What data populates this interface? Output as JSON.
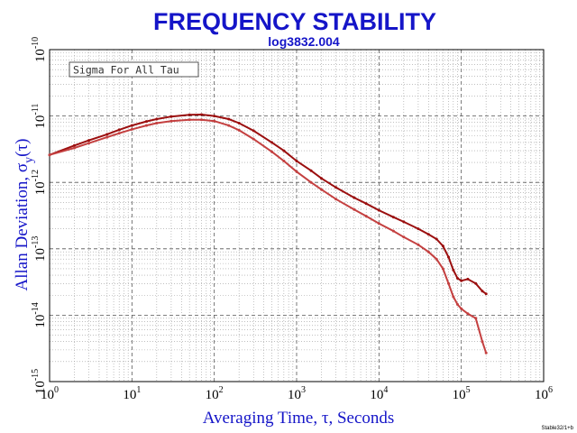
{
  "chart_data": {
    "type": "line",
    "title": "FREQUENCY STABILITY",
    "subtitle": "log3832.004",
    "xlabel": "Averaging Time, τ, Seconds",
    "ylabel": "Allan Deviation, σy(τ)",
    "x_scale": "log",
    "y_scale": "log",
    "xlim": [
      1,
      1000000
    ],
    "ylim": [
      1e-15,
      1e-10
    ],
    "grid": true,
    "legend": "top-left",
    "legend_text": "Sigma For All Tau",
    "x_ticks": [
      "10^0",
      "10^1",
      "10^2",
      "10^3",
      "10^4",
      "10^5",
      "10^6"
    ],
    "y_ticks": [
      "10^-15",
      "10^-14",
      "10^-13",
      "10^-12",
      "10^-11",
      "10^-10"
    ],
    "series": [
      {
        "color": "#9b0f0f",
        "x": [
          1,
          2,
          3,
          5,
          7,
          10,
          15,
          20,
          30,
          50,
          70,
          100,
          150,
          200,
          300,
          500,
          700,
          1000,
          1500,
          2000,
          3000,
          5000,
          7000,
          10000,
          15000,
          20000,
          30000,
          40000,
          50000,
          60000,
          70000,
          80000,
          90000,
          100000,
          120000,
          150000,
          180000,
          200000
        ],
        "y": [
          2.6e-12,
          3.6e-12,
          4.3e-12,
          5.3e-12,
          6.2e-12,
          7.2e-12,
          8.3e-12,
          9e-12,
          9.8e-12,
          1.04e-11,
          1.05e-11,
          1e-11,
          9e-12,
          7.8e-12,
          6e-12,
          4e-12,
          3e-12,
          2.1e-12,
          1.5e-12,
          1.15e-12,
          8.4e-13,
          5.9e-13,
          4.8e-13,
          3.8e-13,
          3e-13,
          2.55e-13,
          2e-13,
          1.65e-13,
          1.4e-13,
          1.1e-13,
          7.5e-14,
          4.8e-14,
          3.6e-14,
          3.3e-14,
          3.5e-14,
          3e-14,
          2.3e-14,
          2.1e-14
        ]
      },
      {
        "color": "#c44040",
        "x": [
          1,
          2,
          3,
          5,
          7,
          10,
          15,
          20,
          30,
          50,
          70,
          100,
          150,
          200,
          300,
          500,
          700,
          1000,
          1500,
          2000,
          3000,
          5000,
          7000,
          10000,
          15000,
          20000,
          30000,
          40000,
          50000,
          60000,
          70000,
          80000,
          90000,
          100000,
          120000,
          150000,
          180000,
          200000
        ],
        "y": [
          2.6e-12,
          3.3e-12,
          3.9e-12,
          4.8e-12,
          5.5e-12,
          6.3e-12,
          7.2e-12,
          7.8e-12,
          8.4e-12,
          8.8e-12,
          8.8e-12,
          8.4e-12,
          7.2e-12,
          6.1e-12,
          4.5e-12,
          2.9e-12,
          2.1e-12,
          1.45e-12,
          1e-12,
          7.8e-13,
          5.6e-13,
          3.9e-13,
          3.1e-13,
          2.4e-13,
          1.85e-13,
          1.5e-13,
          1.15e-13,
          9e-14,
          7e-14,
          5e-14,
          3e-14,
          1.9e-14,
          1.45e-14,
          1.25e-14,
          1.05e-14,
          9e-15,
          4e-15,
          2.7e-15
        ]
      }
    ]
  },
  "footer_text": "Stable32/1+b"
}
